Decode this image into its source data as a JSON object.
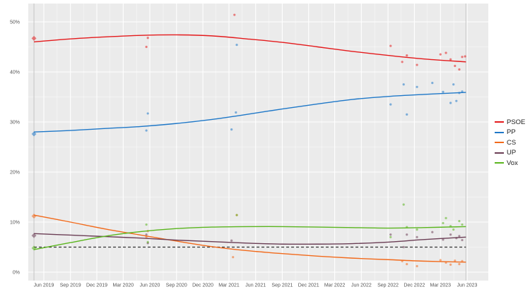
{
  "chart_data": {
    "type": "scatter",
    "title": "",
    "xlabel": "",
    "ylabel": "",
    "ylim": [
      0,
      52
    ],
    "xlim": [
      "2019-03-01",
      "2023-07-01"
    ],
    "y_ticks": [
      "0%",
      "10%",
      "20%",
      "30%",
      "40%",
      "50%"
    ],
    "x_ticks": [
      "Jun 2019",
      "Sep 2019",
      "Dec 2019",
      "Mar 2020",
      "Jun 2020",
      "Sep 2020",
      "Dec 2020",
      "Mar 2021",
      "Jun 2021",
      "Sep 2021",
      "Dec 2021",
      "Mar 2022",
      "Jun 2022",
      "Sep 2022",
      "Dec 2022",
      "Mar 2023",
      "Jun 2023"
    ],
    "threshold": 5,
    "election_markers": [
      "2019-04-28",
      "2023-05-28"
    ],
    "grid": true,
    "legend_position": "right",
    "series": [
      {
        "name": "PSOE",
        "color": "#e41a1c",
        "election_result": 46.7,
        "trend": [
          [
            "2019-04-28",
            46.0
          ],
          [
            "2019-09-01",
            46.6
          ],
          [
            "2020-01-01",
            47.0
          ],
          [
            "2020-05-01",
            47.3
          ],
          [
            "2020-09-01",
            47.4
          ],
          [
            "2021-01-01",
            47.2
          ],
          [
            "2021-05-01",
            46.6
          ],
          [
            "2021-09-01",
            45.9
          ],
          [
            "2022-01-01",
            45.0
          ],
          [
            "2022-05-01",
            44.1
          ],
          [
            "2022-09-01",
            43.3
          ],
          [
            "2023-01-01",
            42.6
          ],
          [
            "2023-05-28",
            42.0
          ]
        ],
        "polls": [
          [
            "2020-05-20",
            45.0
          ],
          [
            "2020-05-25",
            46.8
          ],
          [
            "2021-03-20",
            51.4
          ],
          [
            "2022-09-10",
            45.2
          ],
          [
            "2022-10-20",
            42.0
          ],
          [
            "2022-11-05",
            43.3
          ],
          [
            "2022-12-10",
            41.4
          ],
          [
            "2023-03-01",
            43.5
          ],
          [
            "2023-03-20",
            43.8
          ],
          [
            "2023-04-05",
            42.5
          ],
          [
            "2023-04-20",
            41.2
          ],
          [
            "2023-05-05",
            40.5
          ],
          [
            "2023-05-15",
            43.0
          ],
          [
            "2023-05-25",
            43.1
          ]
        ]
      },
      {
        "name": "PP",
        "color": "#1f78c8",
        "election_result": 27.6,
        "trend": [
          [
            "2019-04-28",
            28.0
          ],
          [
            "2019-09-01",
            28.3
          ],
          [
            "2020-01-01",
            28.7
          ],
          [
            "2020-05-01",
            29.1
          ],
          [
            "2020-09-01",
            29.7
          ],
          [
            "2021-01-01",
            30.5
          ],
          [
            "2021-05-01",
            31.5
          ],
          [
            "2021-09-01",
            32.6
          ],
          [
            "2022-01-01",
            33.6
          ],
          [
            "2022-05-01",
            34.5
          ],
          [
            "2022-09-01",
            35.1
          ],
          [
            "2023-01-01",
            35.5
          ],
          [
            "2023-05-28",
            35.9
          ]
        ],
        "polls": [
          [
            "2020-05-20",
            28.3
          ],
          [
            "2020-05-25",
            31.7
          ],
          [
            "2021-03-10",
            28.5
          ],
          [
            "2021-03-25",
            31.9
          ],
          [
            "2021-03-28",
            45.4
          ],
          [
            "2022-09-10",
            33.5
          ],
          [
            "2022-10-25",
            37.5
          ],
          [
            "2022-11-05",
            31.5
          ],
          [
            "2022-12-10",
            37.0
          ],
          [
            "2023-02-01",
            37.8
          ],
          [
            "2023-03-10",
            36.0
          ],
          [
            "2023-04-05",
            33.8
          ],
          [
            "2023-04-15",
            37.5
          ],
          [
            "2023-04-25",
            34.2
          ],
          [
            "2023-05-05",
            35.8
          ],
          [
            "2023-05-15",
            36.1
          ]
        ]
      },
      {
        "name": "CS",
        "color": "#f26a1b",
        "election_result": 11.2,
        "trend": [
          [
            "2019-04-28",
            11.4
          ],
          [
            "2019-09-01",
            10.0
          ],
          [
            "2020-01-01",
            8.6
          ],
          [
            "2020-05-01",
            7.4
          ],
          [
            "2020-09-01",
            6.2
          ],
          [
            "2021-01-01",
            5.1
          ],
          [
            "2021-05-01",
            4.3
          ],
          [
            "2021-09-01",
            3.7
          ],
          [
            "2022-01-01",
            3.2
          ],
          [
            "2022-05-01",
            2.8
          ],
          [
            "2022-09-01",
            2.5
          ],
          [
            "2023-01-01",
            2.2
          ],
          [
            "2023-05-28",
            2.0
          ]
        ],
        "polls": [
          [
            "2020-05-20",
            7.0
          ],
          [
            "2020-05-25",
            8.2
          ],
          [
            "2021-03-15",
            3.0
          ],
          [
            "2021-03-28",
            11.4
          ],
          [
            "2022-10-20",
            2.2
          ],
          [
            "2022-11-05",
            1.6
          ],
          [
            "2022-12-10",
            1.2
          ],
          [
            "2023-03-01",
            2.4
          ],
          [
            "2023-03-20",
            1.9
          ],
          [
            "2023-04-05",
            1.5
          ],
          [
            "2023-04-20",
            2.3
          ],
          [
            "2023-05-05",
            1.6
          ],
          [
            "2023-05-15",
            2.2
          ]
        ]
      },
      {
        "name": "UP",
        "color": "#6b3e55",
        "election_result": 7.3,
        "trend": [
          [
            "2019-04-28",
            7.7
          ],
          [
            "2019-09-01",
            7.4
          ],
          [
            "2020-01-01",
            7.1
          ],
          [
            "2020-05-01",
            6.8
          ],
          [
            "2020-09-01",
            6.4
          ],
          [
            "2021-01-01",
            6.1
          ],
          [
            "2021-05-01",
            5.8
          ],
          [
            "2021-09-01",
            5.6
          ],
          [
            "2022-01-01",
            5.6
          ],
          [
            "2022-05-01",
            5.7
          ],
          [
            "2022-09-01",
            6.0
          ],
          [
            "2023-01-01",
            6.5
          ],
          [
            "2023-05-28",
            7.0
          ]
        ],
        "polls": [
          [
            "2020-05-20",
            7.5
          ],
          [
            "2020-05-25",
            5.8
          ],
          [
            "2021-03-10",
            6.3
          ],
          [
            "2022-09-10",
            7.5
          ],
          [
            "2022-10-25",
            5.0
          ],
          [
            "2022-11-05",
            7.5
          ],
          [
            "2022-12-10",
            7.0
          ],
          [
            "2023-02-01",
            8.0
          ],
          [
            "2023-03-10",
            6.5
          ],
          [
            "2023-04-05",
            7.5
          ],
          [
            "2023-04-25",
            6.8
          ],
          [
            "2023-05-05",
            7.2
          ],
          [
            "2023-05-15",
            6.4
          ]
        ]
      },
      {
        "name": "Vox",
        "color": "#5ab51e",
        "election_result": 4.8,
        "trend": [
          [
            "2019-04-28",
            4.5
          ],
          [
            "2019-09-01",
            5.9
          ],
          [
            "2020-01-01",
            7.2
          ],
          [
            "2020-05-01",
            8.1
          ],
          [
            "2020-09-01",
            8.7
          ],
          [
            "2021-01-01",
            9.0
          ],
          [
            "2021-05-01",
            9.1
          ],
          [
            "2021-09-01",
            9.1
          ],
          [
            "2022-01-01",
            9.0
          ],
          [
            "2022-05-01",
            8.9
          ],
          [
            "2022-09-01",
            8.8
          ],
          [
            "2023-01-01",
            8.9
          ],
          [
            "2023-05-28",
            9.1
          ]
        ],
        "polls": [
          [
            "2020-05-20",
            9.5
          ],
          [
            "2020-05-25",
            6.0
          ],
          [
            "2021-03-28",
            11.4
          ],
          [
            "2022-09-10",
            7.0
          ],
          [
            "2022-10-25",
            13.5
          ],
          [
            "2022-11-05",
            9.0
          ],
          [
            "2022-12-10",
            8.5
          ],
          [
            "2023-03-10",
            9.8
          ],
          [
            "2023-03-20",
            10.8
          ],
          [
            "2023-04-05",
            9.2
          ],
          [
            "2023-04-15",
            8.5
          ],
          [
            "2023-05-05",
            10.2
          ],
          [
            "2023-05-15",
            9.5
          ]
        ]
      }
    ]
  }
}
